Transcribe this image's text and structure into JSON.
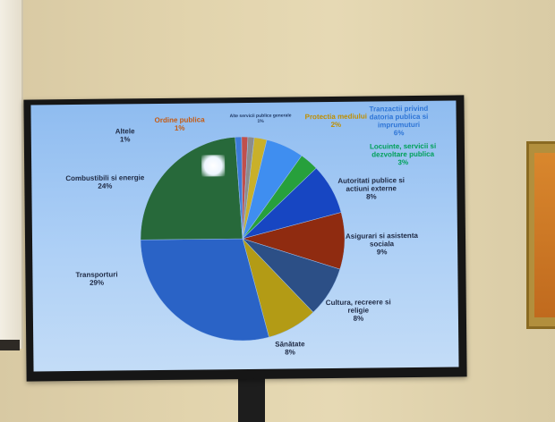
{
  "chart_data": {
    "type": "pie",
    "slices": [
      {
        "label": "Ordine publica",
        "percent": "1%",
        "value": 1,
        "color": "#c0504d"
      },
      {
        "label": "Alte servicii publice generale",
        "percent": "1%",
        "value": 1,
        "color": "#8c8c8c"
      },
      {
        "label": "Protectia mediului",
        "percent": "2%",
        "value": 2,
        "color": "#c9b02a"
      },
      {
        "label": "Tranzactii privind datoria publica si imprumuturi",
        "percent": "6%",
        "value": 6,
        "color": "#3f8ef0"
      },
      {
        "label": "Locuinte, servicii si dezvoltare publica",
        "percent": "3%",
        "value": 3,
        "color": "#27a03c"
      },
      {
        "label": "Autoritati publice si actiuni externe",
        "percent": "8%",
        "value": 8,
        "color": "#1746c2"
      },
      {
        "label": "Asigurari si asistenta sociala",
        "percent": "9%",
        "value": 9,
        "color": "#8f2b10"
      },
      {
        "label": "Cultura, recreere si religie",
        "percent": "8%",
        "value": 8,
        "color": "#2c4f86"
      },
      {
        "label": "Sanatate",
        "percent": "8%",
        "value": 8,
        "color": "#b39b15"
      },
      {
        "label": "Transporturi",
        "percent": "29%",
        "value": 29,
        "color": "#2a63c6"
      },
      {
        "label": "Combustibili si energie",
        "percent": "24%",
        "value": 24,
        "color": "#27693a"
      },
      {
        "label": "Altele",
        "percent": "1%",
        "value": 1,
        "color": "#3c7bd8"
      }
    ],
    "label_colors": {
      "Ordine publica": "#c55a11",
      "Alte servicii publice generale": "#1f3864",
      "Protectia mediului": "#bf8f00",
      "Tranzactii privind datoria publica si imprumuturi": "#2e75d6",
      "Locuinte, servicii si dezvoltare publica": "#00a05a",
      "default": "#1f2a44"
    }
  },
  "labels": {
    "altele": {
      "name": "Altele",
      "pct": "1%"
    },
    "ordine": {
      "name": "Ordine publica",
      "pct": "1%"
    },
    "alte_servicii": {
      "name": "Alte servicii publice generale",
      "pct": "1%"
    },
    "mediu": {
      "name": "Protectia mediului",
      "pct": "2%"
    },
    "tranzactii": {
      "l1": "Tranzactii privind",
      "l2": "datoria publica si",
      "l3": "imprumuturi",
      "pct": "6%"
    },
    "locuinte": {
      "l1": "Locuinte, servicii si",
      "l2": "dezvoltare publica",
      "pct": "3%"
    },
    "autoritati": {
      "l1": "Autoritati publice si",
      "l2": "actiuni externe",
      "pct": "8%"
    },
    "asigurari": {
      "l1": "Asigurari si asistenta",
      "l2": "sociala",
      "pct": "9%"
    },
    "cultura": {
      "l1": "Cultura, recreere si",
      "l2": "religie",
      "pct": "8%"
    },
    "sanatate": {
      "name": "Sănătate",
      "pct": "8%"
    },
    "transporturi": {
      "name": "Transporturi",
      "pct": "29%"
    },
    "combustibili": {
      "name": "Combustibili si energie",
      "pct": "24%"
    }
  }
}
